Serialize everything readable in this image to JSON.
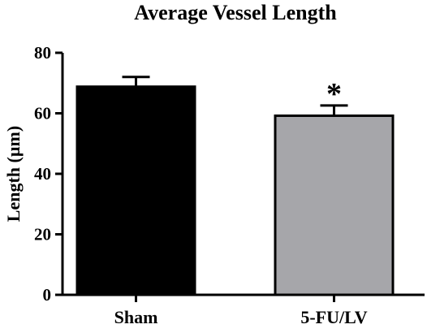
{
  "chart_data": {
    "type": "bar",
    "title": "Average Vessel Length",
    "xlabel": "",
    "ylabel": "Length (µm)",
    "categories": [
      "Sham",
      "5-FU/LV"
    ],
    "values": [
      68.8,
      59.2
    ],
    "error_upper": [
      3.2,
      3.4
    ],
    "annotations": [
      "",
      "*"
    ],
    "ylim": [
      0,
      80
    ],
    "yticks": [
      0,
      20,
      40,
      60,
      80
    ],
    "ytick_labels": [
      "0",
      "20",
      "40",
      "60",
      "80"
    ],
    "bar_colors": [
      "#000000",
      "#a6a6aa"
    ],
    "bar_edge_color": "#000000",
    "grid": false,
    "legend": "none"
  }
}
